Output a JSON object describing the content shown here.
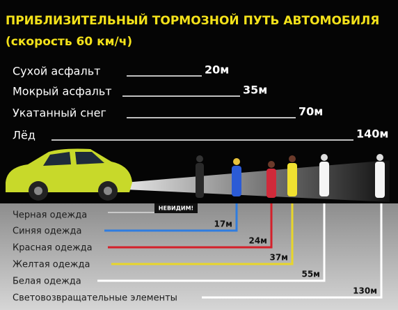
{
  "header": {
    "title_line1": "ПРИБЛИЗИТЕЛЬНЫЙ ТОРМОЗНОЙ ПУТЬ АВТОМОБИЛЯ",
    "title_line2": "(скорость 60 км/ч)"
  },
  "braking": [
    {
      "label": "Сухой асфальт",
      "value": "20м"
    },
    {
      "label": "Мокрый асфальт",
      "value": "35м"
    },
    {
      "label": "Укатанный снег",
      "value": "70м"
    },
    {
      "label": "Лёд",
      "value": "140м"
    }
  ],
  "visibility": [
    {
      "label": "Черная одежда",
      "value": "НЕВИДИМ!"
    },
    {
      "label": "Синяя одежда",
      "value": "17м"
    },
    {
      "label": "Красная одежда",
      "value": "24м"
    },
    {
      "label": "Желтая одежда",
      "value": "37м"
    },
    {
      "label": "Белая одежда",
      "value": "55м"
    },
    {
      "label": "Световозвращательные элементы",
      "value": "130м"
    }
  ]
}
